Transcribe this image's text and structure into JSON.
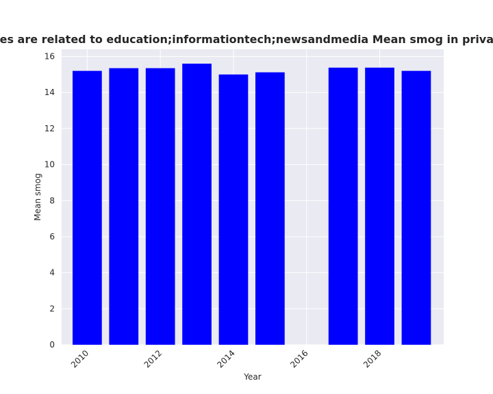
{
  "chart_data": {
    "type": "bar",
    "title": "Categories are related to education;informationtech;newsandmedia Mean smog in privacy policies",
    "xlabel": "Year",
    "ylabel": "Mean smog",
    "x": [
      2010,
      2011,
      2012,
      2013,
      2014,
      2015,
      2017,
      2018,
      2019
    ],
    "values": [
      15.2,
      15.35,
      15.35,
      15.6,
      15.0,
      15.12,
      15.38,
      15.38,
      15.2
    ],
    "xlim": [
      2009.3,
      2019.75
    ],
    "ylim": [
      0,
      16.4
    ],
    "xticks": [
      2010,
      2012,
      2014,
      2016,
      2018
    ],
    "yticks": [
      0,
      2,
      4,
      6,
      8,
      10,
      12,
      14,
      16
    ],
    "bar_color": "#0000ff",
    "plot_background": "#eaeaf2",
    "grid_color": "#ffffff",
    "grid": true
  }
}
